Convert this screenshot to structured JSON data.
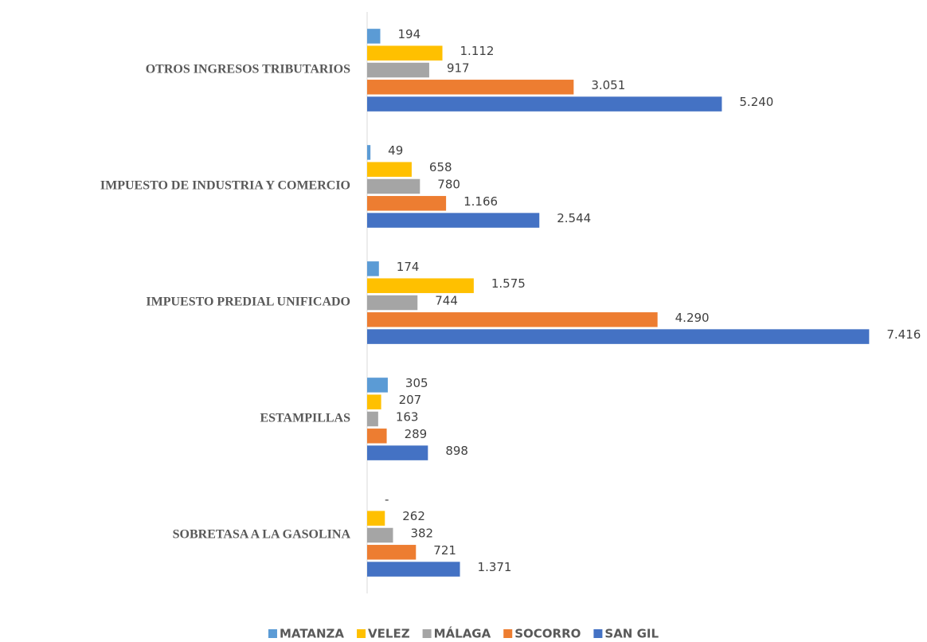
{
  "chart_data": {
    "type": "bar",
    "orientation": "horizontal",
    "categories": [
      "OTROS INGRESOS TRIBUTARIOS",
      "IMPUESTO DE INDUSTRIA Y COMERCIO",
      "IMPUESTO PREDIAL UNIFICADO",
      "ESTAMPILLAS",
      "SOBRETASA A LA GASOLINA"
    ],
    "series": [
      {
        "name": "MATANZA",
        "color": "#5b9bd5",
        "values": [
          194,
          49,
          174,
          305,
          0
        ],
        "value_labels": [
          "194",
          "49",
          "174",
          "305",
          "-"
        ]
      },
      {
        "name": "VELEZ",
        "color": "#ffc000",
        "values": [
          1112,
          658,
          1575,
          207,
          262
        ],
        "value_labels": [
          "1.112",
          "658",
          "1.575",
          "207",
          "262"
        ]
      },
      {
        "name": "MÁLAGA",
        "color": "#a5a5a5",
        "values": [
          917,
          780,
          744,
          163,
          382
        ],
        "value_labels": [
          "917",
          "780",
          "744",
          "163",
          "382"
        ]
      },
      {
        "name": "SOCORRO",
        "color": "#ed7d31",
        "values": [
          3051,
          1166,
          4290,
          289,
          721
        ],
        "value_labels": [
          "3.051",
          "1.166",
          "4.290",
          "289",
          "721"
        ]
      },
      {
        "name": "SAN GIL",
        "color": "#4472c4",
        "values": [
          5240,
          2544,
          7416,
          898,
          1371
        ],
        "value_labels": [
          "5.240",
          "2.544",
          "7.416",
          "898",
          "1.371"
        ]
      }
    ],
    "xlim": [
      0,
      8000
    ],
    "grid": false,
    "legend": "bottom"
  }
}
